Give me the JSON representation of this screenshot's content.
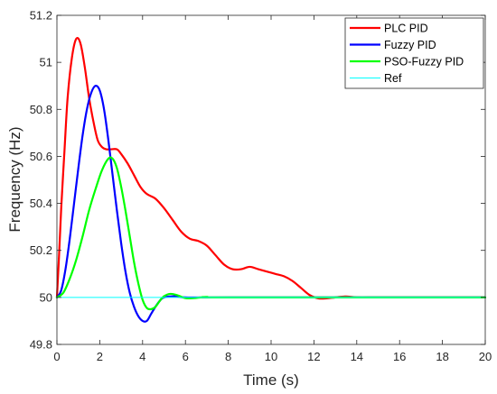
{
  "chart_data": {
    "type": "line",
    "title": "",
    "xlabel": "Time (s)",
    "ylabel": "Frequency (Hz)",
    "xlim": [
      0,
      20
    ],
    "ylim": [
      49.8,
      51.2
    ],
    "xticks": [
      0,
      2,
      4,
      6,
      8,
      10,
      12,
      14,
      16,
      18,
      20
    ],
    "yticks": [
      49.8,
      50,
      50.2,
      50.4,
      50.6,
      50.8,
      51,
      51.2
    ],
    "grid": false,
    "legend_position": "top-right",
    "series": [
      {
        "name": "PLC PID",
        "color": "#ff0000",
        "points": [
          [
            0,
            50
          ],
          [
            0.1,
            50.18
          ],
          [
            0.2,
            50.38
          ],
          [
            0.35,
            50.62
          ],
          [
            0.5,
            50.85
          ],
          [
            0.7,
            51.02
          ],
          [
            0.9,
            51.1
          ],
          [
            1.1,
            51.08
          ],
          [
            1.3,
            50.98
          ],
          [
            1.5,
            50.85
          ],
          [
            1.7,
            50.75
          ],
          [
            1.9,
            50.67
          ],
          [
            2.1,
            50.64
          ],
          [
            2.3,
            50.63
          ],
          [
            2.5,
            50.63
          ],
          [
            2.8,
            50.63
          ],
          [
            3.0,
            50.61
          ],
          [
            3.3,
            50.57
          ],
          [
            3.6,
            50.52
          ],
          [
            3.9,
            50.47
          ],
          [
            4.2,
            50.44
          ],
          [
            4.6,
            50.42
          ],
          [
            5.0,
            50.38
          ],
          [
            5.4,
            50.33
          ],
          [
            5.8,
            50.28
          ],
          [
            6.2,
            50.25
          ],
          [
            6.6,
            50.24
          ],
          [
            7.0,
            50.22
          ],
          [
            7.4,
            50.18
          ],
          [
            7.8,
            50.14
          ],
          [
            8.2,
            50.12
          ],
          [
            8.6,
            50.12
          ],
          [
            9.0,
            50.13
          ],
          [
            9.4,
            50.12
          ],
          [
            9.8,
            50.11
          ],
          [
            10.2,
            50.1
          ],
          [
            10.6,
            50.09
          ],
          [
            11.0,
            50.07
          ],
          [
            11.4,
            50.04
          ],
          [
            11.8,
            50.01
          ],
          [
            12.2,
            49.996
          ],
          [
            12.6,
            49.996
          ],
          [
            13.0,
            50.0
          ],
          [
            13.5,
            50.004
          ],
          [
            14.0,
            50.0
          ],
          [
            15.0,
            50.0
          ],
          [
            17.0,
            50.0
          ],
          [
            20.0,
            50.0
          ]
        ]
      },
      {
        "name": "Fuzzy PID",
        "color": "#0000ff",
        "points": [
          [
            0,
            50
          ],
          [
            0.2,
            50.03
          ],
          [
            0.4,
            50.12
          ],
          [
            0.6,
            50.25
          ],
          [
            0.8,
            50.4
          ],
          [
            1.0,
            50.55
          ],
          [
            1.2,
            50.69
          ],
          [
            1.4,
            50.8
          ],
          [
            1.6,
            50.87
          ],
          [
            1.8,
            50.9
          ],
          [
            2.0,
            50.88
          ],
          [
            2.2,
            50.8
          ],
          [
            2.4,
            50.67
          ],
          [
            2.6,
            50.52
          ],
          [
            2.8,
            50.37
          ],
          [
            3.0,
            50.23
          ],
          [
            3.2,
            50.11
          ],
          [
            3.4,
            50.02
          ],
          [
            3.6,
            49.96
          ],
          [
            3.8,
            49.92
          ],
          [
            4.0,
            49.9
          ],
          [
            4.2,
            49.9
          ],
          [
            4.4,
            49.93
          ],
          [
            4.6,
            49.96
          ],
          [
            4.8,
            49.985
          ],
          [
            5.0,
            50.0
          ],
          [
            5.5,
            50.005
          ],
          [
            6.0,
            50.0
          ],
          [
            8.0,
            50.0
          ],
          [
            20.0,
            50.0
          ]
        ]
      },
      {
        "name": "PSO-Fuzzy PID",
        "color": "#00ff00",
        "points": [
          [
            0,
            50
          ],
          [
            0.3,
            50.02
          ],
          [
            0.6,
            50.08
          ],
          [
            0.9,
            50.16
          ],
          [
            1.2,
            50.26
          ],
          [
            1.5,
            50.37
          ],
          [
            1.8,
            50.46
          ],
          [
            2.1,
            50.54
          ],
          [
            2.4,
            50.59
          ],
          [
            2.6,
            50.59
          ],
          [
            2.8,
            50.55
          ],
          [
            3.0,
            50.47
          ],
          [
            3.2,
            50.37
          ],
          [
            3.4,
            50.26
          ],
          [
            3.6,
            50.15
          ],
          [
            3.8,
            50.06
          ],
          [
            4.0,
            49.99
          ],
          [
            4.2,
            49.955
          ],
          [
            4.4,
            49.95
          ],
          [
            4.6,
            49.96
          ],
          [
            4.8,
            49.985
          ],
          [
            5.0,
            50.005
          ],
          [
            5.3,
            50.015
          ],
          [
            5.6,
            50.01
          ],
          [
            6.0,
            49.997
          ],
          [
            6.4,
            49.997
          ],
          [
            7.0,
            50.002
          ],
          [
            8.0,
            50.0
          ],
          [
            20.0,
            50.0
          ]
        ]
      },
      {
        "name": "Ref",
        "color": "#00ffff",
        "points": [
          [
            0,
            50
          ],
          [
            20,
            50
          ]
        ]
      }
    ]
  }
}
